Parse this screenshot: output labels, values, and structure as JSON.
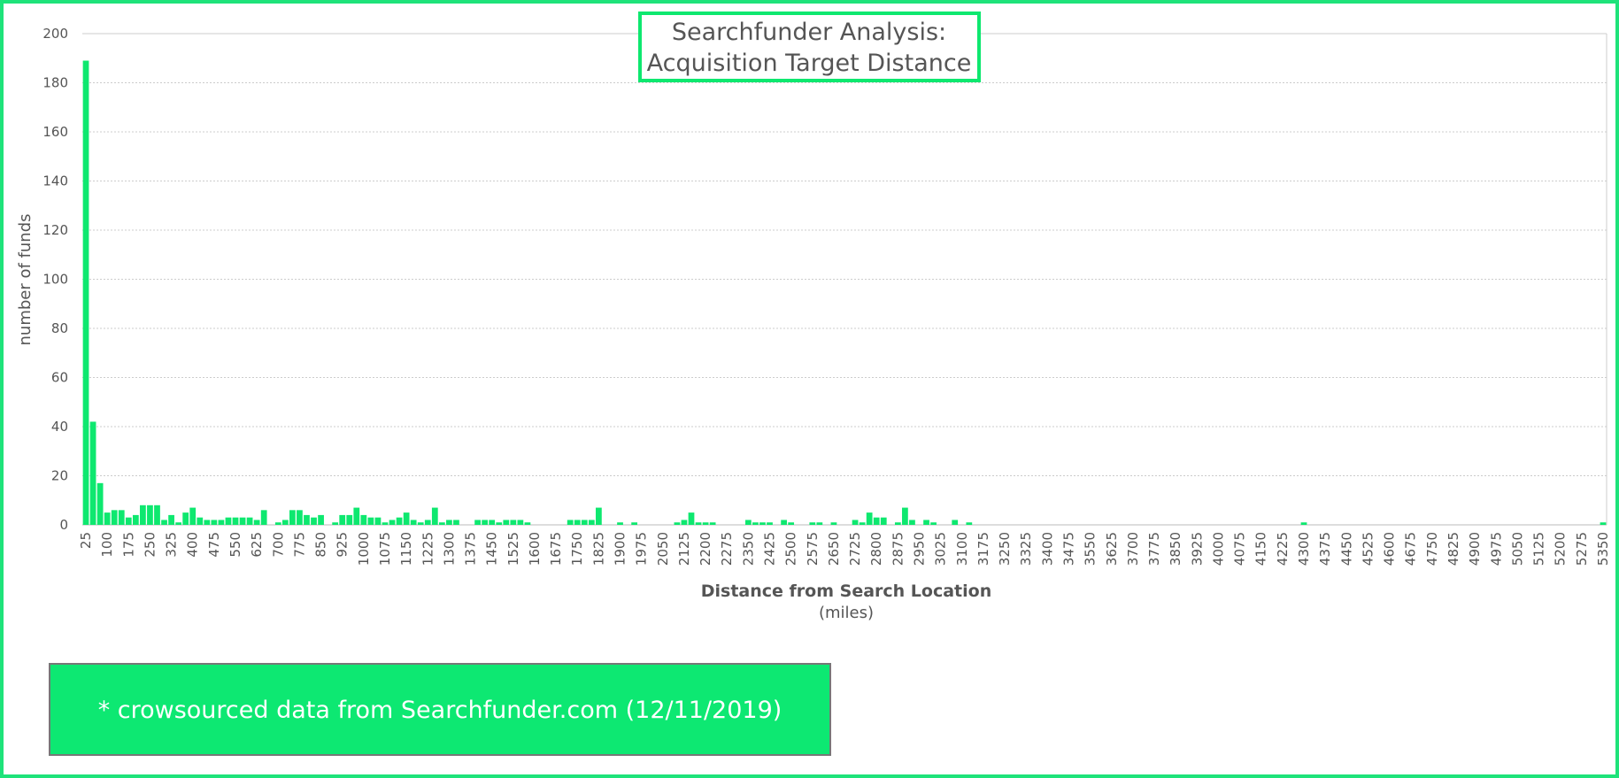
{
  "chart_data": {
    "type": "bar",
    "title": [
      "Searchfunder Analysis:",
      "Acquisition Target Distance"
    ],
    "x_label": "Distance from Search Location",
    "x_label_sub": "(miles)",
    "y_label": "number of funds",
    "footnote": "* crowsourced data from Searchfunder.com (12/11/2019)",
    "color": "#0ee86f",
    "grid": true,
    "ylim": [
      0,
      200
    ],
    "yticks": [
      0,
      20,
      40,
      60,
      80,
      100,
      120,
      140,
      160,
      180,
      200
    ],
    "categories": [
      "25",
      null,
      null,
      "100",
      null,
      null,
      "175",
      null,
      null,
      "250",
      null,
      null,
      "325",
      null,
      null,
      "400",
      null,
      null,
      "475",
      null,
      null,
      "550",
      null,
      null,
      "625",
      null,
      null,
      "700",
      null,
      null,
      "775",
      null,
      null,
      "850",
      null,
      null,
      "925",
      null,
      null,
      "1000",
      null,
      null,
      "1075",
      null,
      null,
      "1150",
      null,
      null,
      "1225",
      null,
      null,
      "1300",
      null,
      null,
      "1375",
      null,
      null,
      "1450",
      null,
      null,
      "1525",
      null,
      null,
      "1600",
      null,
      null,
      "1675",
      null,
      null,
      "1750",
      null,
      null,
      "1825",
      null,
      null,
      "1900",
      null,
      null,
      "1975",
      null,
      null,
      "2050",
      null,
      null,
      "2125",
      null,
      null,
      "2200",
      null,
      null,
      "2275",
      null,
      null,
      "2350",
      null,
      null,
      "2425",
      null,
      null,
      "2500",
      null,
      null,
      "2575",
      null,
      null,
      "2650",
      null,
      null,
      "2725",
      null,
      null,
      "2800",
      null,
      null,
      "2875",
      null,
      null,
      "2950",
      null,
      null,
      "3025",
      null,
      null,
      "3100",
      null,
      null,
      "3175",
      null,
      null,
      "3250",
      null,
      null,
      "3325",
      null,
      null,
      "3400",
      null,
      null,
      "3475",
      null,
      null,
      "3550",
      null,
      null,
      "3625",
      null,
      null,
      "3700",
      null,
      null,
      "3775",
      null,
      null,
      "3850",
      null,
      null,
      "3925",
      null,
      null,
      "4000",
      null,
      null,
      "4075",
      null,
      null,
      "4150",
      null,
      null,
      "4225",
      null,
      null,
      "4300",
      null,
      null,
      "4375",
      null,
      null,
      "4450",
      null,
      null,
      "4525",
      null,
      null,
      "4600",
      null,
      null,
      "4675",
      null,
      null,
      "4750",
      null,
      null,
      "4825",
      null,
      null,
      "4900",
      null,
      null,
      "4975",
      null,
      null,
      "5050",
      null,
      null,
      "5125",
      null,
      null,
      "5200",
      null,
      null,
      "5275",
      null,
      null,
      "5350"
    ],
    "values": [
      189,
      42,
      17,
      5,
      6,
      6,
      3,
      4,
      8,
      8,
      8,
      2,
      4,
      1,
      5,
      7,
      3,
      2,
      2,
      2,
      3,
      3,
      3,
      3,
      2,
      6,
      0,
      1,
      2,
      6,
      6,
      4,
      3,
      4,
      0,
      1,
      4,
      4,
      7,
      4,
      3,
      3,
      1,
      2,
      3,
      5,
      2,
      1,
      2,
      7,
      1,
      2,
      2,
      0,
      0,
      2,
      2,
      2,
      1,
      2,
      2,
      2,
      1,
      0,
      0,
      0,
      0,
      0,
      2,
      2,
      2,
      2,
      7,
      0,
      0,
      1,
      0,
      1,
      0,
      0,
      0,
      0,
      0,
      1,
      2,
      5,
      1,
      1,
      1,
      0,
      0,
      0,
      0,
      2,
      1,
      1,
      1,
      0,
      2,
      1,
      0,
      0,
      1,
      1,
      0,
      1,
      0,
      0,
      2,
      1,
      5,
      3,
      3,
      0,
      1,
      7,
      2,
      0,
      2,
      1,
      0,
      0,
      2,
      0,
      1,
      0,
      0,
      0,
      0,
      0,
      0,
      0,
      0,
      0,
      0,
      0,
      0,
      0,
      0,
      0,
      0,
      0,
      0,
      0,
      0,
      0,
      0,
      0,
      0,
      0,
      0,
      0,
      0,
      0,
      0,
      0,
      0,
      0,
      0,
      0,
      0,
      0,
      0,
      0,
      0,
      0,
      0,
      0,
      0,
      0,
      0,
      1,
      0,
      0,
      0,
      0,
      0,
      0,
      0,
      0,
      0,
      0,
      0,
      0,
      0,
      0,
      0,
      0,
      0,
      0,
      0,
      0,
      0,
      0,
      0,
      0,
      0,
      0,
      0,
      0,
      0,
      0,
      0,
      0,
      0,
      0,
      0,
      0,
      0,
      0,
      0,
      0,
      0,
      1
    ]
  }
}
